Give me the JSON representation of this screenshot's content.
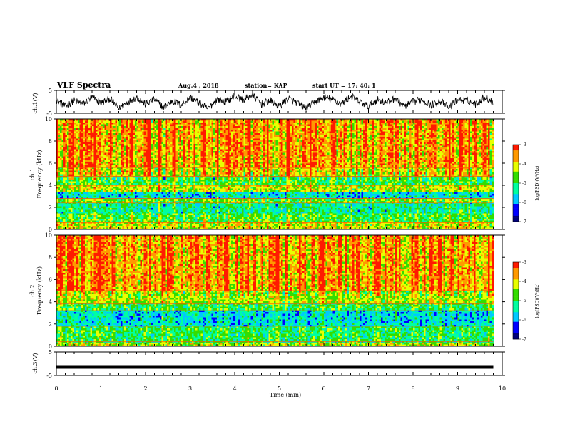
{
  "header": {
    "title": "VLF Spectra",
    "date": "Aug.4  , 2018",
    "station": "station= KAP",
    "start": "start  UT  =   17: 40: 1"
  },
  "chart_data": [
    {
      "type": "line",
      "name": "ch1-voltage",
      "ylabel": "ch.1(V)",
      "ylim": [
        -5,
        5
      ],
      "y_ticks": [
        "5",
        "-5"
      ],
      "xlim": [
        0,
        10
      ],
      "description_values": "noisy waveform oscillating roughly between -4 and +4 V",
      "x": [
        0,
        0.2,
        0.4,
        0.6,
        0.8,
        1.0,
        1.2,
        1.4,
        1.6,
        1.8,
        2.0,
        2.2,
        2.4,
        2.6,
        2.8,
        3.0,
        3.2,
        3.4,
        3.6,
        3.8,
        4.0,
        4.2,
        4.4,
        4.6,
        4.8,
        5.0,
        5.2,
        5.4,
        5.6,
        5.8,
        6.0,
        6.2,
        6.4,
        6.6,
        6.8,
        7.0,
        7.2,
        7.4,
        7.6,
        7.8,
        8.0,
        8.2,
        8.4,
        8.6,
        8.8,
        9.0,
        9.2,
        9.4,
        9.6,
        9.8
      ],
      "y": [
        1,
        -2,
        0.5,
        -1,
        2,
        -0.5,
        1.5,
        -3,
        0,
        2,
        -1,
        1,
        -2.5,
        0.5,
        -1.5,
        2,
        -0.5,
        -3,
        1,
        0,
        2.5,
        1,
        3,
        -1,
        0.5,
        -2,
        1.5,
        -0.5,
        -3,
        0,
        2,
        1,
        -1,
        2.5,
        0,
        -2,
        1,
        -0.5,
        1.5,
        -2,
        0,
        1,
        -1.5,
        0.5,
        -2.5,
        1,
        0.5,
        -1,
        2,
        0
      ]
    },
    {
      "type": "heatmap",
      "name": "ch1-spectrogram",
      "ylabel": "ch.1\nFrequency  (kHz)",
      "ylim": [
        0,
        10
      ],
      "y_ticks": [
        "0",
        "2",
        "4",
        "6",
        "8",
        "10"
      ],
      "xlim": [
        0,
        9.8
      ],
      "colorbar": {
        "label": "log(PSD)(V²/Hz)",
        "ticks": [
          "-3",
          "-4",
          "-5",
          "-6",
          "-7"
        ],
        "range": [
          -7,
          -3
        ]
      },
      "bands_log_psd": [
        {
          "f_khz": [
            0,
            0.6
          ],
          "value": -4.2
        },
        {
          "f_khz": [
            0.6,
            1.4
          ],
          "value": -4.8
        },
        {
          "f_khz": [
            1.4,
            2.4
          ],
          "value": -5.3
        },
        {
          "f_khz": [
            2.4,
            2.8
          ],
          "value": -4.6
        },
        {
          "f_khz": [
            2.8,
            3.4
          ],
          "value": -5.6
        },
        {
          "f_khz": [
            3.4,
            4.0
          ],
          "value": -4.3
        },
        {
          "f_khz": [
            4.0,
            4.8
          ],
          "value": -4.9
        },
        {
          "f_khz": [
            4.8,
            5.6
          ],
          "value": -4.1
        },
        {
          "f_khz": [
            5.6,
            10
          ],
          "value": -3.7
        }
      ]
    },
    {
      "type": "heatmap",
      "name": "ch2-spectrogram",
      "ylabel": "ch.2\nFrequency  (kHz)",
      "ylim": [
        0,
        10
      ],
      "y_ticks": [
        "0",
        "2",
        "4",
        "6",
        "8",
        "10"
      ],
      "xlim": [
        0,
        9.8
      ],
      "colorbar": {
        "label": "log(PSD)(V²/Hz)",
        "ticks": [
          "-3",
          "-4",
          "-5",
          "-6",
          "-7"
        ],
        "range": [
          -7,
          -3
        ]
      },
      "bands_log_psd": [
        {
          "f_khz": [
            0,
            0.4
          ],
          "value": -4.3
        },
        {
          "f_khz": [
            0.4,
            1.8
          ],
          "value": -5.0
        },
        {
          "f_khz": [
            1.8,
            3.2
          ],
          "value": -5.6
        },
        {
          "f_khz": [
            3.2,
            3.8
          ],
          "value": -4.9
        },
        {
          "f_khz": [
            3.8,
            5.0
          ],
          "value": -4.3
        },
        {
          "f_khz": [
            5.0,
            10
          ],
          "value": -3.6
        }
      ]
    },
    {
      "type": "line",
      "name": "ch3-voltage",
      "ylabel": "ch.3(V)",
      "ylim": [
        -5,
        5
      ],
      "y_ticks": [
        "5",
        "-5"
      ],
      "xlim": [
        0,
        10
      ],
      "x": [
        0,
        9.8
      ],
      "y": [
        -1.5,
        -1.5
      ]
    }
  ],
  "x_axis": {
    "label": "Time  (min)",
    "ticks": [
      "0",
      "1",
      "2",
      "3",
      "4",
      "5",
      "6",
      "7",
      "8",
      "9",
      "10"
    ]
  },
  "colors": {
    "colormap": [
      "#00007a",
      "#0000ff",
      "#00c8ff",
      "#00ffa0",
      "#33dd00",
      "#e8ff00",
      "#ff9900",
      "#ff1a00",
      "#ffffff"
    ]
  }
}
